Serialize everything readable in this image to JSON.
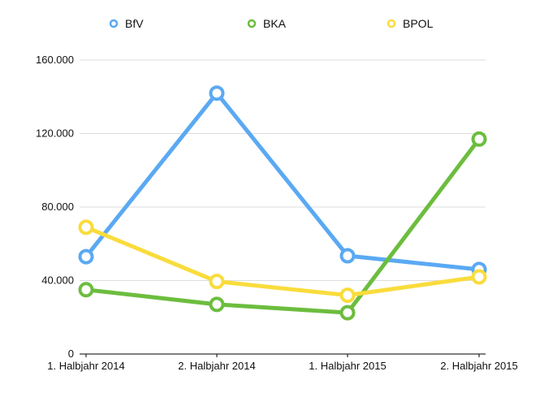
{
  "chart_data": {
    "type": "line",
    "title": "",
    "xlabel": "",
    "ylabel": "",
    "categories": [
      "1. Halbjahr 2014",
      "2. Halbjahr 2014",
      "1. Halbjahr 2015",
      "2. Halbjahr 2015"
    ],
    "ylim": [
      0,
      160000
    ],
    "yticks": [
      0,
      40000,
      80000,
      120000,
      160000
    ],
    "ytick_labels": [
      "0",
      "40.000",
      "80.000",
      "120.000",
      "160.000"
    ],
    "grid": true,
    "legend_position": "top",
    "series": [
      {
        "name": "BfV",
        "color": "#5aa9f3",
        "values": [
          53000,
          142000,
          53500,
          46000
        ]
      },
      {
        "name": "BKA",
        "color": "#6cbd3e",
        "values": [
          35000,
          27000,
          22500,
          117000
        ]
      },
      {
        "name": "BPOL",
        "color": "#f9dc3c",
        "values": [
          69000,
          39500,
          32000,
          42000
        ]
      }
    ]
  }
}
